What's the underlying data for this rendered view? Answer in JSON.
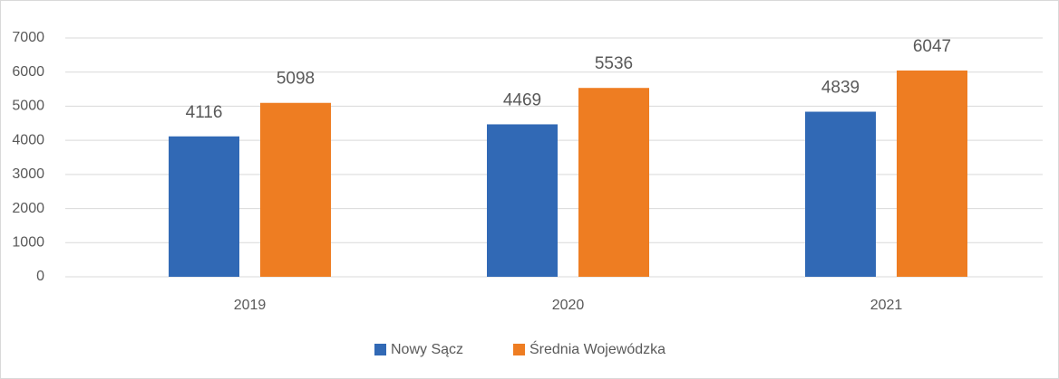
{
  "chart_data": {
    "type": "bar",
    "categories": [
      "2019",
      "2020",
      "2021"
    ],
    "series": [
      {
        "name": "Nowy Sącz",
        "color": "#3169b5",
        "values": [
          4116,
          4469,
          4839
        ]
      },
      {
        "name": "Średnia Wojewódzka",
        "color": "#ee7d22",
        "values": [
          5098,
          5536,
          6047
        ]
      }
    ],
    "ylim": [
      0,
      7000
    ],
    "yticks": [
      0,
      1000,
      2000,
      3000,
      4000,
      5000,
      6000,
      7000
    ],
    "grid": true,
    "legend": "bottom"
  }
}
